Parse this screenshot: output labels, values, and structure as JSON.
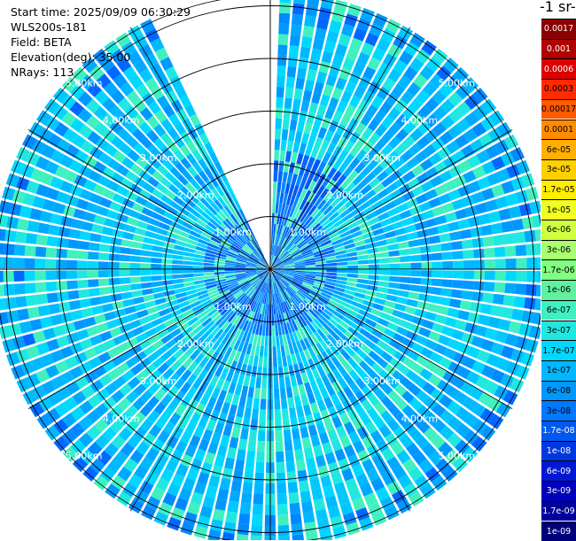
{
  "info": {
    "start_time": "Start time: 2025/09/09 06:30:29",
    "instrument": "WLS200s-181",
    "field": "Field: BETA",
    "elevation": "Elevation(deg): 35.00",
    "nrays": "NRays: 113"
  },
  "colorbar": {
    "title": "-1 sr-",
    "labels": [
      "0.0017",
      "0.001",
      "0.0006",
      "0.0003",
      "0.00017",
      "0.0001",
      "6e-05",
      "3e-05",
      "1.7e-05",
      "1e-05",
      "6e-06",
      "3e-06",
      "1.7e-06",
      "1e-06",
      "6e-07",
      "3e-07",
      "1.7e-07",
      "1e-07",
      "6e-08",
      "3e-08",
      "1.7e-08",
      "1e-08",
      "6e-09",
      "3e-09",
      "1.7e-09",
      "1e-09"
    ],
    "colors": [
      "#8b0000",
      "#b00000",
      "#dc0000",
      "#ff2a00",
      "#ff5a00",
      "#ff8c00",
      "#ffb000",
      "#ffd000",
      "#ffee00",
      "#f0ff20",
      "#d0ff40",
      "#a8ff70",
      "#80ff80",
      "#60f0a0",
      "#40f0c0",
      "#20e8e0",
      "#00d8ff",
      "#00b8ff",
      "#0098ff",
      "#0078ff",
      "#0058f0",
      "#0038e0",
      "#0018d0",
      "#0000b8",
      "#00009a",
      "#00007a"
    ]
  },
  "chart_data": {
    "type": "heatmap",
    "projection": "polar PPI",
    "field": "BETA",
    "elevation_deg": 35.0,
    "nrays": 113,
    "range_rings_km": [
      1.0,
      2.0,
      3.0,
      4.0,
      5.0
    ],
    "ring_labels": [
      "1.00km",
      "2.00km",
      "3.00km",
      "4.00km",
      "5.00km"
    ],
    "max_range_km": 5.2,
    "missing_sector_deg": [
      335,
      360
    ],
    "gridlines": true,
    "colorbar_position": "right"
  }
}
